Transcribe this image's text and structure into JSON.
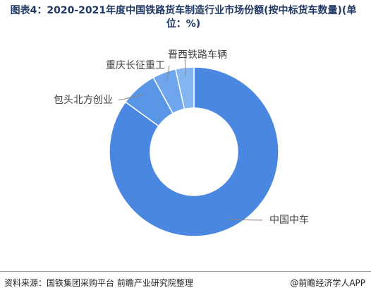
{
  "chart_data": {
    "type": "donut",
    "title": "图表4：2020-2021年度中国铁路货车制造行业市场份额(按中标货车数量)(单位：%)",
    "source": "资料来源：国铁集团采购平台 前瞻产业研究院整理",
    "credit": "@前瞻经济学人APP",
    "categories": [
      "中国中车",
      "包头北方创业",
      "重庆长征重工",
      "晋西铁路车辆"
    ],
    "values": [
      85,
      7,
      4.5,
      3.5
    ],
    "colors": [
      "#4a87e0",
      "#5a96e6",
      "#6ea5ec",
      "#83b5f0"
    ]
  }
}
